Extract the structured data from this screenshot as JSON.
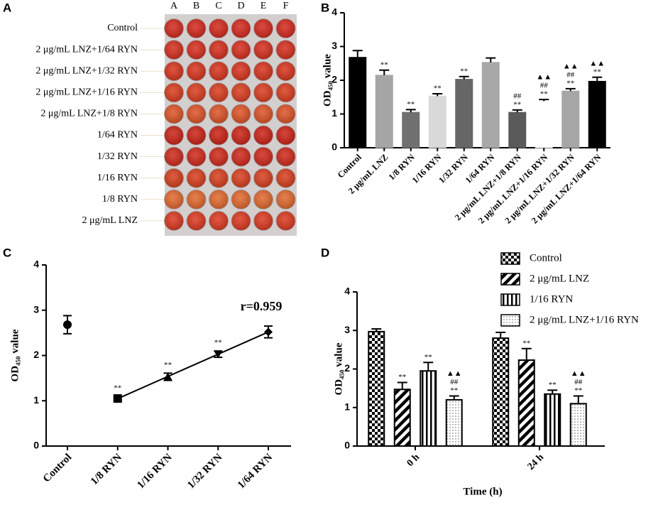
{
  "plate": {
    "panel_label": "A",
    "columns": [
      "A",
      "B",
      "C",
      "D",
      "E",
      "F"
    ],
    "rows": [
      "Control",
      "2 μg/mL LNZ+1/64 RYN",
      "2 μg/mL LNZ+1/32 RYN",
      "2 μg/mL LNZ+1/16 RYN",
      "2 μg/mL LNZ+1/8 RYN",
      "1/64 RYN",
      "1/32 RYN",
      "1/16 RYN",
      "1/8 RYN",
      "2 μg/mL LNZ"
    ],
    "row_colors": [
      "#d42a1f",
      "#d6301f",
      "#d8361f",
      "#da3e20",
      "#de5428",
      "#cc2418",
      "#d02a1c",
      "#d8401f",
      "#e2692f",
      "#dc3a22"
    ]
  },
  "chart_data": [
    {
      "type": "bar",
      "panel_label": "B",
      "ylabel": "OD₄₅₀ value",
      "categories": [
        "Control",
        "2 μg/mL LNZ",
        "1/8 RYN",
        "1/16 RYN",
        "1/32 RYN",
        "1/64 RYN",
        "2 μg/mL LNZ+1/8 RYN",
        "2 μg/mL LNZ+1/16 RYN",
        "2 μg/mL LNZ+1/32 RYN",
        "2 μg/mL LNZ+1/64 RYN"
      ],
      "values": [
        2.68,
        2.15,
        1.05,
        1.53,
        2.03,
        2.53,
        1.05,
        1.38,
        1.68,
        1.97
      ],
      "errors": [
        0.2,
        0.15,
        0.08,
        0.07,
        0.08,
        0.13,
        0.07,
        0.05,
        0.07,
        0.12
      ],
      "colors": [
        "#000000",
        "#a6a6a6",
        "#707070",
        "#d9d9d9",
        "#666666",
        "#a8a8a8",
        "#5a5a5a",
        "#ffffff",
        "#a6a6a6",
        "#000000"
      ],
      "annotations": [
        [],
        [
          "**"
        ],
        [
          "**"
        ],
        [
          "**"
        ],
        [
          "**"
        ],
        [],
        [
          "##",
          "**"
        ],
        [
          "▲▲",
          "##",
          "**"
        ],
        [
          "▲▲",
          "##",
          "**"
        ],
        [
          "▲▲",
          "**"
        ]
      ],
      "ylim": [
        0,
        4
      ],
      "yticks": [
        0,
        1,
        2,
        3,
        4
      ]
    },
    {
      "type": "point",
      "panel_label": "C",
      "ylabel": "OD₄₅₀ value",
      "text": "r=0.959",
      "categories": [
        "Control",
        "1/8 RYN",
        "1/16 RYN",
        "1/32 RYN",
        "1/64 RYN"
      ],
      "markers": [
        "circle",
        "square",
        "triangle",
        "triangle-down",
        "diamond"
      ],
      "series": [
        {
          "values": [
            2.68,
            null,
            null,
            null,
            null
          ],
          "errors": [
            0.2,
            null,
            null,
            null,
            null
          ],
          "fit_line": false
        },
        {
          "values": [
            null,
            1.05,
            1.53,
            2.03,
            2.52
          ],
          "errors": [
            null,
            0.05,
            0.08,
            0.07,
            0.13
          ],
          "fit_line": true
        }
      ],
      "annotations": [
        [],
        [
          "**"
        ],
        [
          "**"
        ],
        [
          "**"
        ],
        []
      ],
      "ylim": [
        0,
        4
      ],
      "yticks": [
        0,
        1,
        2,
        3,
        4
      ]
    },
    {
      "type": "grouped_bar",
      "panel_label": "D",
      "ylabel": "OD₄₅₀ value",
      "xlabel": "Time (h)",
      "categories": [
        "0 h",
        "24 h"
      ],
      "series": [
        {
          "name": "Control",
          "pattern": "checker",
          "values": [
            2.97,
            2.8
          ],
          "errors": [
            0.07,
            0.15
          ],
          "annotations": [
            [],
            []
          ]
        },
        {
          "name": "2 μg/mL LNZ",
          "pattern": "diagonal",
          "values": [
            1.47,
            2.23
          ],
          "errors": [
            0.18,
            0.3
          ],
          "annotations": [
            [
              "**"
            ],
            [
              "**"
            ]
          ]
        },
        {
          "name": "1/16 RYN",
          "pattern": "vertical",
          "values": [
            1.95,
            1.35
          ],
          "errors": [
            0.22,
            0.1
          ],
          "annotations": [
            [
              "**"
            ],
            [
              "**"
            ]
          ]
        },
        {
          "name": "2 μg/mL LNZ+1/16 RYN",
          "pattern": "dots",
          "values": [
            1.2,
            1.1
          ],
          "errors": [
            0.1,
            0.2
          ],
          "annotations": [
            [
              "▲▲",
              "##",
              "**"
            ],
            [
              "▲▲",
              "##",
              "**"
            ]
          ]
        }
      ],
      "ylim": [
        0,
        4
      ],
      "yticks": [
        0,
        1,
        2,
        3,
        4
      ]
    }
  ]
}
